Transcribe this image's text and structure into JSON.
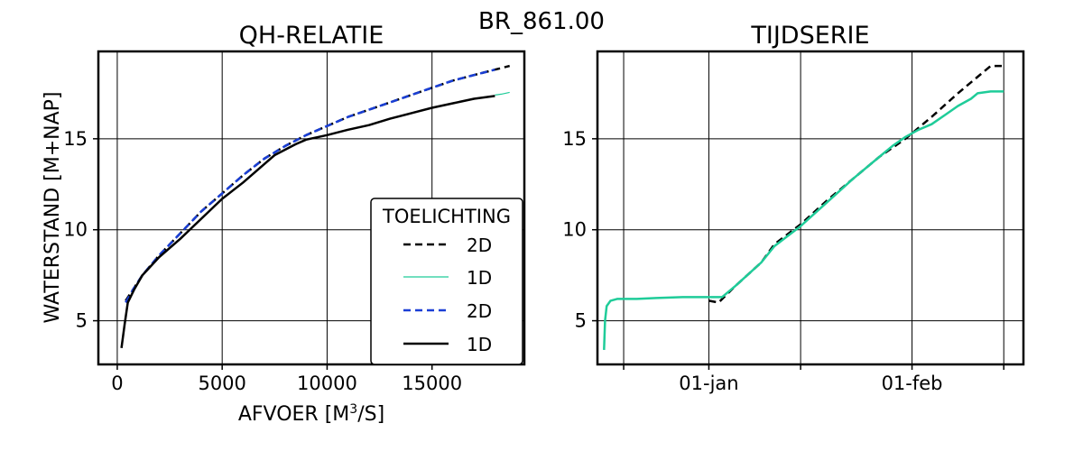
{
  "figure": {
    "suptitle": "BR_861.00"
  },
  "chart_data": [
    {
      "type": "line",
      "title": "QH-RELATIE",
      "xlabel_base": "AFVOER [M",
      "xlabel_sup": "3",
      "xlabel_end": "/S]",
      "ylabel": "WATERSTAND [M+NAP]",
      "xlim": [
        -900,
        19400
      ],
      "ylim": [
        2.6,
        19.8
      ],
      "xticks": [
        {
          "value": 0,
          "label": "0"
        },
        {
          "value": 5000,
          "label": "5000"
        },
        {
          "value": 10000,
          "label": "10000"
        },
        {
          "value": 15000,
          "label": "15000"
        }
      ],
      "yticks": [
        {
          "value": 5,
          "label": "5"
        },
        {
          "value": 10,
          "label": "10"
        },
        {
          "value": 15,
          "label": "15"
        }
      ],
      "grid": true,
      "legend": {
        "title": "TOELICHTING",
        "placement": "lower-right",
        "entries": [
          "2D",
          "1D",
          "2D",
          "1D"
        ]
      },
      "series": [
        {
          "name": "2D",
          "color": "#000000",
          "style": "dashed",
          "width": 2.5,
          "points": [
            [
              400,
              6.1
            ],
            [
              800,
              6.8
            ],
            [
              1200,
              7.5
            ],
            [
              2000,
              8.6
            ],
            [
              3000,
              9.8
            ],
            [
              4000,
              11.0
            ],
            [
              5000,
              12.0
            ],
            [
              6000,
              13.0
            ],
            [
              7000,
              13.9
            ],
            [
              8000,
              14.6
            ],
            [
              9000,
              15.2
            ],
            [
              10000,
              15.7
            ],
            [
              11000,
              16.2
            ],
            [
              12000,
              16.6
            ],
            [
              13000,
              17.0
            ],
            [
              14000,
              17.4
            ],
            [
              15000,
              17.8
            ],
            [
              16000,
              18.2
            ],
            [
              17000,
              18.5
            ],
            [
              18000,
              18.8
            ],
            [
              18700,
              19.0
            ]
          ]
        },
        {
          "name": "1D",
          "color": "#1fcc99",
          "style": "solid",
          "width": 1.2,
          "points": [
            [
              18000,
              17.4
            ],
            [
              18300,
              17.45
            ],
            [
              18700,
              17.55
            ]
          ]
        },
        {
          "name": "2D",
          "color": "#1a3fd6",
          "style": "dashed",
          "width": 2.5,
          "points": [
            [
              400,
              6.0
            ],
            [
              800,
              6.8
            ],
            [
              1200,
              7.5
            ],
            [
              2000,
              8.6
            ],
            [
              3000,
              9.8
            ],
            [
              4000,
              11.0
            ],
            [
              5000,
              12.0
            ],
            [
              6000,
              13.0
            ],
            [
              7000,
              13.9
            ],
            [
              8000,
              14.6
            ],
            [
              9000,
              15.2
            ],
            [
              10000,
              15.7
            ],
            [
              11000,
              16.2
            ],
            [
              12000,
              16.6
            ],
            [
              13000,
              17.0
            ],
            [
              14000,
              17.4
            ],
            [
              15000,
              17.8
            ],
            [
              16000,
              18.2
            ],
            [
              17000,
              18.5
            ],
            [
              18000,
              18.8
            ]
          ]
        },
        {
          "name": "1D",
          "color": "#000000",
          "style": "solid",
          "width": 2.5,
          "points": [
            [
              200,
              3.5
            ],
            [
              350,
              4.8
            ],
            [
              500,
              6.0
            ],
            [
              800,
              6.7
            ],
            [
              1200,
              7.5
            ],
            [
              2000,
              8.5
            ],
            [
              3000,
              9.5
            ],
            [
              4000,
              10.6
            ],
            [
              5000,
              11.7
            ],
            [
              6000,
              12.6
            ],
            [
              7000,
              13.6
            ],
            [
              7500,
              14.1
            ],
            [
              8500,
              14.7
            ],
            [
              9000,
              14.95
            ],
            [
              10000,
              15.2
            ],
            [
              11000,
              15.5
            ],
            [
              12000,
              15.75
            ],
            [
              13000,
              16.1
            ],
            [
              14000,
              16.4
            ],
            [
              15000,
              16.7
            ],
            [
              16000,
              16.95
            ],
            [
              17000,
              17.2
            ],
            [
              18000,
              17.35
            ]
          ]
        }
      ]
    },
    {
      "type": "line",
      "title": "TIJDSERIE",
      "x_unit": "days since 2022-12-01",
      "xlim": [
        -1.0,
        64.0
      ],
      "ylim": [
        2.6,
        19.8
      ],
      "xticks": [
        {
          "value": 16,
          "label": "01-jan"
        },
        {
          "value": 47,
          "label": "01-feb"
        }
      ],
      "xgrid_values": [
        3,
        16,
        30,
        47,
        61
      ],
      "yticks": [
        {
          "value": 5,
          "label": "5"
        },
        {
          "value": 10,
          "label": "10"
        },
        {
          "value": 15,
          "label": "15"
        }
      ],
      "grid": true,
      "series": [
        {
          "name": "2D",
          "color": "#000000",
          "style": "dashed",
          "width": 2.5,
          "points": [
            [
              16,
              6.1
            ],
            [
              17.5,
              6.0
            ],
            [
              20,
              6.9
            ],
            [
              24,
              8.2
            ],
            [
              26,
              9.2
            ],
            [
              30,
              10.3
            ],
            [
              34,
              11.6
            ],
            [
              38,
              12.8
            ],
            [
              42,
              14.0
            ],
            [
              46,
              15.0
            ],
            [
              50,
              16.2
            ],
            [
              54,
              17.5
            ],
            [
              58,
              18.7
            ],
            [
              59,
              19.0
            ],
            [
              61,
              19.0
            ]
          ]
        },
        {
          "name": "1D",
          "color": "#1fcc99",
          "style": "solid",
          "width": 2.5,
          "points": [
            [
              0,
              3.4
            ],
            [
              0.15,
              5.0
            ],
            [
              0.4,
              5.8
            ],
            [
              1.0,
              6.1
            ],
            [
              2,
              6.2
            ],
            [
              5,
              6.2
            ],
            [
              8,
              6.25
            ],
            [
              12,
              6.3
            ],
            [
              16,
              6.3
            ],
            [
              18,
              6.3
            ],
            [
              20,
              6.9
            ],
            [
              24,
              8.2
            ],
            [
              26,
              9.1
            ],
            [
              30,
              10.2
            ],
            [
              34,
              11.5
            ],
            [
              38,
              12.8
            ],
            [
              42,
              14.0
            ],
            [
              44,
              14.6
            ],
            [
              46,
              15.1
            ],
            [
              48,
              15.5
            ],
            [
              50,
              15.8
            ],
            [
              52,
              16.3
            ],
            [
              54,
              16.8
            ],
            [
              56,
              17.2
            ],
            [
              57,
              17.5
            ],
            [
              59,
              17.6
            ],
            [
              61,
              17.6
            ]
          ]
        }
      ]
    }
  ]
}
